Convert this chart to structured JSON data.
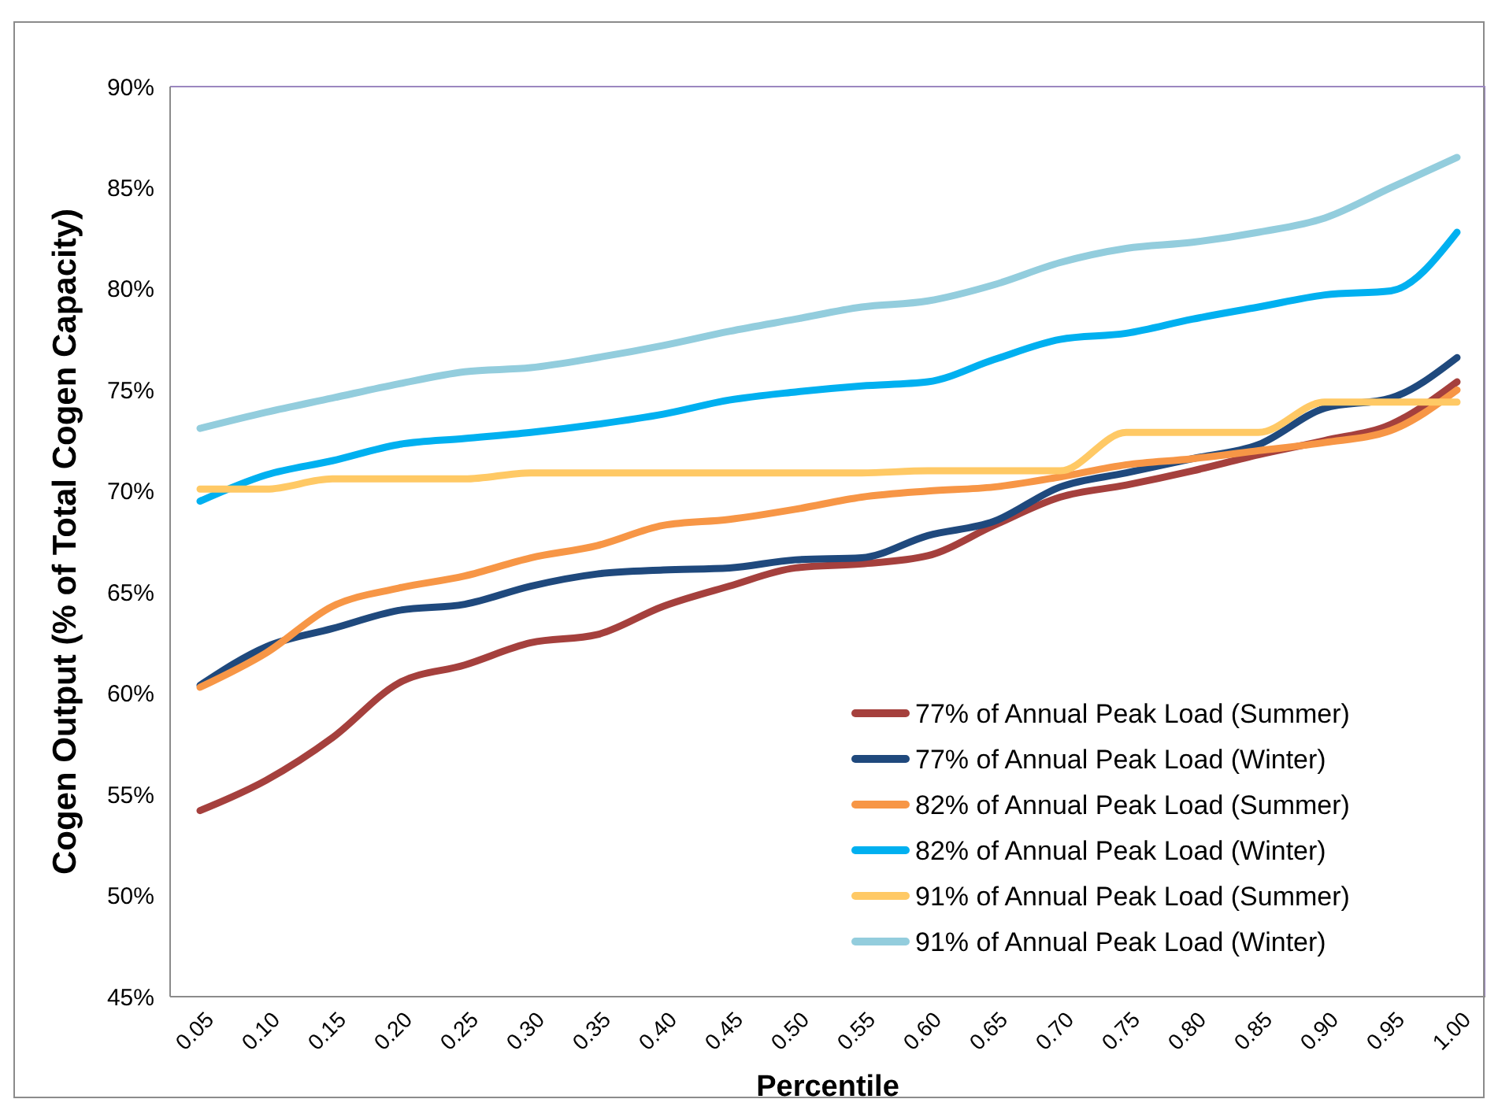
{
  "chart_data": {
    "type": "line",
    "xlabel": "Percentile",
    "ylabel": "Cogen Output (% of Total Cogen Capacity)",
    "categories": [
      "0.05",
      "0.10",
      "0.15",
      "0.20",
      "0.25",
      "0.30",
      "0.35",
      "0.40",
      "0.45",
      "0.50",
      "0.55",
      "0.60",
      "0.65",
      "0.70",
      "0.75",
      "0.80",
      "0.85",
      "0.90",
      "0.95",
      "1.00"
    ],
    "ylim": [
      45,
      90
    ],
    "yticks": [
      {
        "value": 45,
        "label": "45%"
      },
      {
        "value": 50,
        "label": "50%"
      },
      {
        "value": 55,
        "label": "55%"
      },
      {
        "value": 60,
        "label": "60%"
      },
      {
        "value": 65,
        "label": "65%"
      },
      {
        "value": 70,
        "label": "70%"
      },
      {
        "value": 75,
        "label": "75%"
      },
      {
        "value": 80,
        "label": "80%"
      },
      {
        "value": 85,
        "label": "85%"
      },
      {
        "value": 90,
        "label": "90%"
      }
    ],
    "grid": false,
    "legend": "bottom right",
    "marker": "none",
    "line_style": "solid",
    "series": [
      {
        "name": "77% of Annual Peak Load (Summer)",
        "color": "#a5403d",
        "values": [
          54.2,
          55.7,
          57.8,
          60.5,
          61.4,
          62.5,
          62.9,
          64.3,
          65.3,
          66.2,
          66.4,
          66.8,
          68.3,
          69.7,
          70.3,
          71.0,
          71.8,
          72.5,
          73.3,
          75.4
        ]
      },
      {
        "name": "77% of Annual Peak Load (Winter)",
        "color": "#1f497d",
        "values": [
          60.4,
          62.3,
          63.2,
          64.1,
          64.4,
          65.3,
          65.9,
          66.1,
          66.2,
          66.6,
          66.7,
          67.8,
          68.5,
          70.2,
          70.9,
          71.6,
          72.3,
          74.1,
          74.6,
          76.6
        ]
      },
      {
        "name": "82% of Annual Peak Load (Summer)",
        "color": "#f79646",
        "values": [
          60.3,
          62.0,
          64.3,
          65.2,
          65.8,
          66.7,
          67.3,
          68.3,
          68.6,
          69.1,
          69.7,
          70.0,
          70.2,
          70.7,
          71.3,
          71.6,
          72.0,
          72.4,
          73.0,
          75.0
        ]
      },
      {
        "name": "82% of Annual Peak Load (Winter)",
        "color": "#00b0f0",
        "values": [
          69.5,
          70.8,
          71.5,
          72.3,
          72.6,
          72.9,
          73.3,
          73.8,
          74.5,
          74.9,
          75.2,
          75.4,
          76.5,
          77.5,
          77.8,
          78.5,
          79.1,
          79.7,
          79.9,
          82.8
        ]
      },
      {
        "name": "91% of Annual Peak Load (Summer)",
        "color": "#ffc965",
        "values": [
          70.1,
          70.1,
          70.6,
          70.6,
          70.6,
          70.9,
          70.9,
          70.9,
          70.9,
          70.9,
          70.9,
          71.0,
          71.0,
          71.0,
          72.9,
          72.9,
          72.9,
          74.4,
          74.4,
          74.4
        ]
      },
      {
        "name": "91% of Annual Peak Load (Winter)",
        "color": "#93cddd",
        "values": [
          73.1,
          73.9,
          74.6,
          75.3,
          75.9,
          76.1,
          76.6,
          77.2,
          77.9,
          78.5,
          79.1,
          79.4,
          80.2,
          81.3,
          82.0,
          82.3,
          82.8,
          83.5,
          85.0,
          86.5
        ]
      }
    ]
  }
}
